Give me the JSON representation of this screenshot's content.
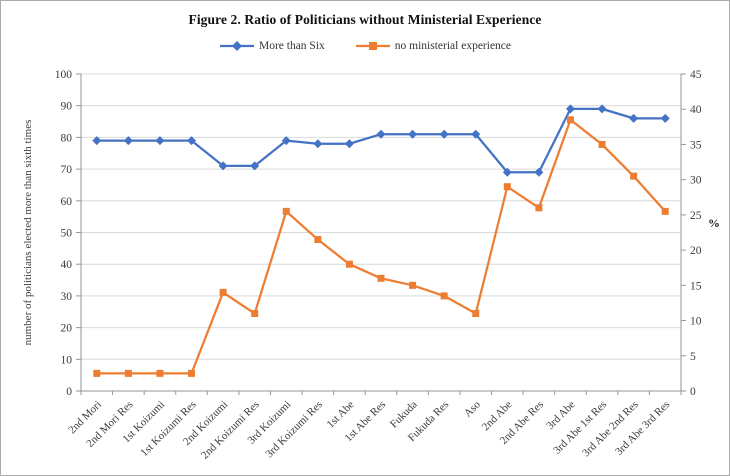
{
  "chart_data": {
    "type": "line",
    "title": "Figure 2. Ratio of Politicians without Ministerial Experience",
    "categories": [
      "2nd Mori",
      "2nd Mori Res",
      "1st Koizumi",
      "1st Koizumi Res",
      "2nd Koizumi",
      "2nd Koizumi Res",
      "3rd Koizumi",
      "3rd Koizumi Res",
      "1st Abe",
      "1st Abe Res",
      "Fukuda",
      "Fukuda Res",
      "Aso",
      "2nd Abe",
      "2nd Abe Res",
      "3rd Abe",
      "3rd Abe 1st Res",
      "3rd Abe 2nd Res",
      "3rd Abe 3rd Res"
    ],
    "series": [
      {
        "name": "More than Six",
        "axis": "left",
        "color": "#4472C4",
        "marker": "diamond",
        "values": [
          79,
          79,
          79,
          79,
          71,
          71,
          79,
          78,
          78,
          81,
          81,
          81,
          81,
          69,
          69,
          89,
          89,
          86,
          86
        ]
      },
      {
        "name": "no ministerial experience",
        "axis": "right",
        "color": "#ED7D31",
        "marker": "square",
        "values": [
          2.5,
          2.5,
          2.5,
          2.5,
          14,
          11,
          25.5,
          21.5,
          18,
          16,
          15,
          13.5,
          11,
          29,
          26,
          38.5,
          35,
          30.5,
          25.5
        ]
      }
    ],
    "left_axis": {
      "label": "number of politicians elected more than sixth times",
      "min": 0,
      "max": 100,
      "step": 10
    },
    "right_axis": {
      "label": "%",
      "min": 0,
      "max": 45,
      "step": 5
    },
    "grid": true,
    "legend_position": "top",
    "grid_color": "#d9d9d9",
    "axis_color": "#969696",
    "text_color": "#3c3c3c"
  }
}
